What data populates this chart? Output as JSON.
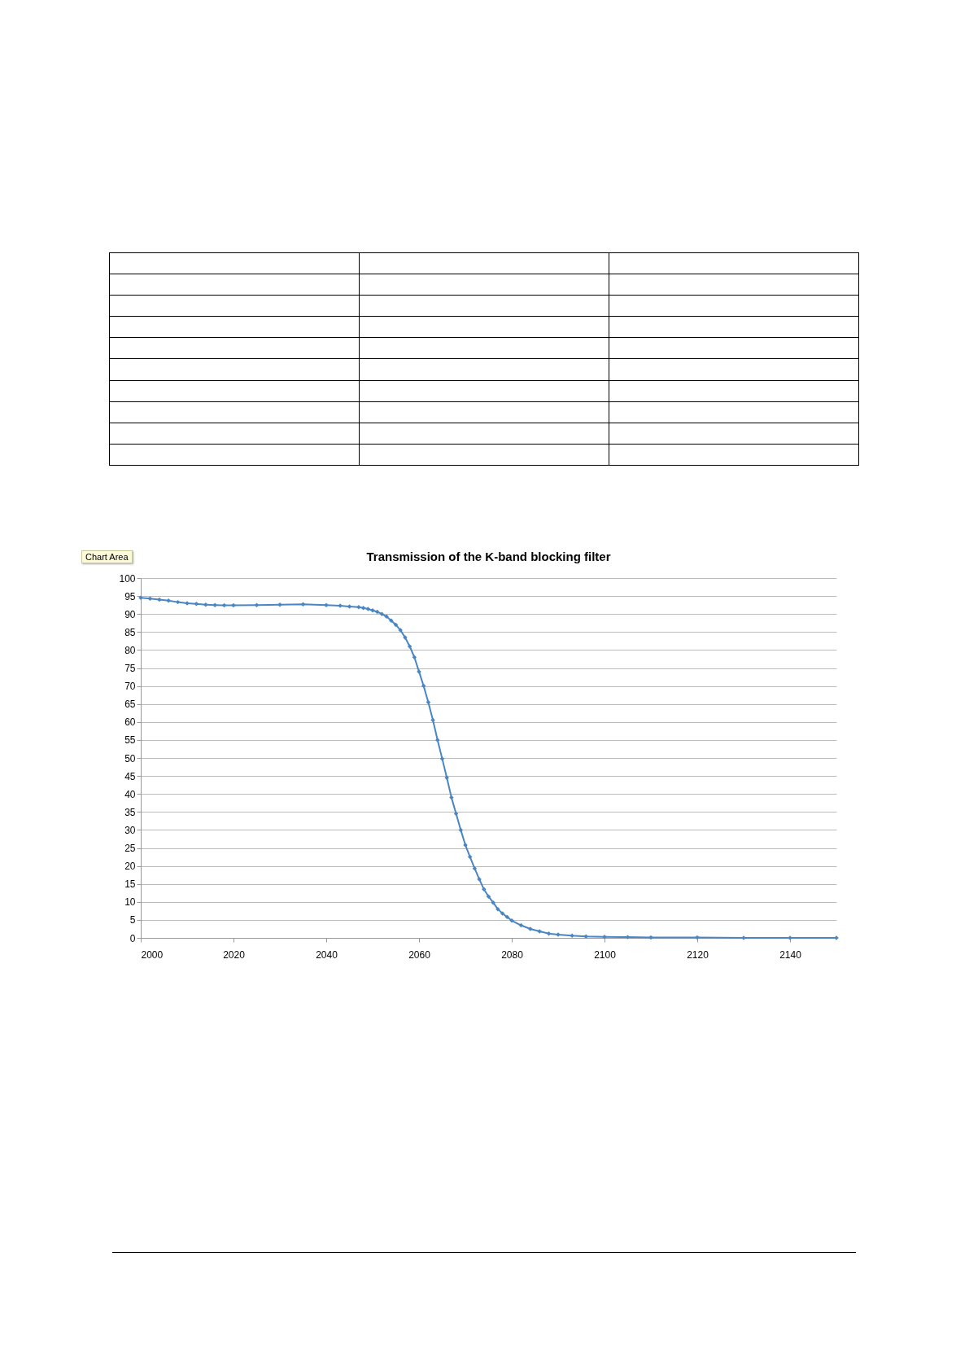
{
  "chart_data": {
    "type": "line",
    "title": "Transmission of the K-band blocking filter",
    "annotations": [
      "Chart Area"
    ],
    "x": [
      2000,
      2002,
      2004,
      2006,
      2008,
      2010,
      2012,
      2014,
      2016,
      2018,
      2020,
      2025,
      2030,
      2035,
      2040,
      2043,
      2045,
      2047,
      2048,
      2049,
      2050,
      2051,
      2052,
      2053,
      2054,
      2055,
      2056,
      2057,
      2058,
      2059,
      2060,
      2061,
      2062,
      2063,
      2064,
      2065,
      2066,
      2067,
      2068,
      2069,
      2070,
      2071,
      2072,
      2073,
      2074,
      2075,
      2076,
      2077,
      2078,
      2079,
      2080,
      2082,
      2084,
      2086,
      2088,
      2090,
      2093,
      2096,
      2100,
      2105,
      2110,
      2120,
      2130,
      2140,
      2150
    ],
    "series": [
      {
        "color": "#4a86c4",
        "values": [
          94.5,
          94.3,
          94.0,
          93.7,
          93.3,
          93.0,
          92.8,
          92.6,
          92.5,
          92.4,
          92.4,
          92.5,
          92.6,
          92.7,
          92.5,
          92.3,
          92.1,
          91.9,
          91.7,
          91.4,
          91.0,
          90.6,
          90.0,
          89.3,
          88.2,
          87.0,
          85.5,
          83.5,
          81.0,
          78.0,
          74.0,
          70.0,
          65.5,
          60.5,
          55.0,
          49.8,
          44.5,
          39.0,
          34.5,
          30.0,
          25.8,
          22.5,
          19.3,
          16.3,
          13.5,
          11.5,
          9.8,
          8.0,
          6.8,
          5.8,
          4.8,
          3.5,
          2.5,
          1.8,
          1.2,
          0.9,
          0.6,
          0.4,
          0.3,
          0.2,
          0.1,
          0.1,
          0,
          0,
          0
        ]
      }
    ],
    "xlim": [
      2000,
      2150
    ],
    "xticks": [
      2000,
      2020,
      2040,
      2060,
      2080,
      2100,
      2120,
      2140
    ],
    "ylim": [
      0,
      100
    ],
    "yticks": [
      0,
      5,
      10,
      15,
      20,
      25,
      30,
      35,
      40,
      45,
      50,
      55,
      60,
      65,
      70,
      75,
      80,
      85,
      90,
      95,
      100
    ],
    "grid": "y",
    "marker": "diamond",
    "line_style": "solid"
  }
}
